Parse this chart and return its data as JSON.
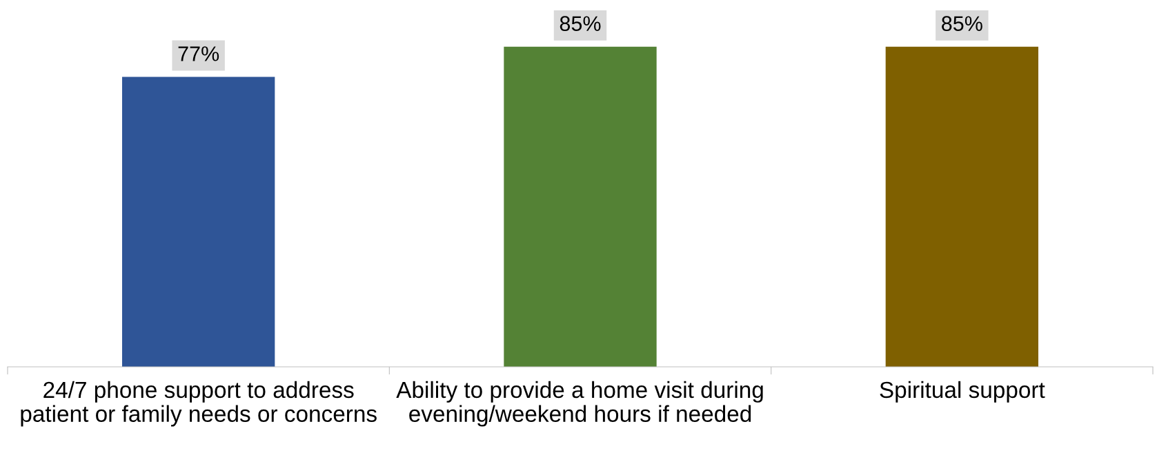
{
  "chart_data": {
    "type": "bar",
    "categories": [
      "24/7 phone support to address patient or family needs or concerns",
      "Ability to provide a home visit during evening/weekend hours if needed",
      "Spiritual support"
    ],
    "values": [
      77,
      85,
      85
    ],
    "colors": [
      "#2f5597",
      "#548235",
      "#7f6000"
    ],
    "value_labels": [
      "77%",
      "85%",
      "85%"
    ]
  }
}
